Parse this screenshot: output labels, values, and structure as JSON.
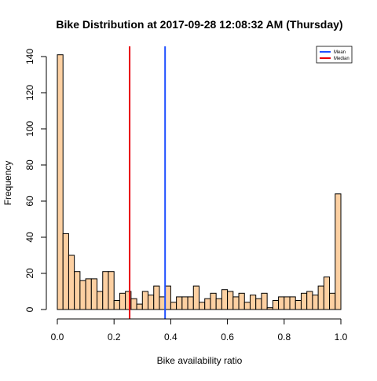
{
  "chart_data": {
    "type": "bar",
    "title": "Bike Distribution at  2017-09-28 12:08:32 AM  (Thursday)",
    "xlabel": "Bike availability ratio",
    "ylabel": "Frequency",
    "xlim": [
      0,
      1
    ],
    "ylim": [
      0,
      140
    ],
    "x_ticks": [
      0.0,
      0.2,
      0.4,
      0.6,
      0.8,
      1.0
    ],
    "x_tick_labels": [
      "0.0",
      "0.2",
      "0.4",
      "0.6",
      "0.8",
      "1.0"
    ],
    "y_ticks": [
      0,
      20,
      40,
      60,
      80,
      100,
      120,
      140
    ],
    "y_tick_labels": [
      "0",
      "20",
      "40",
      "60",
      "80",
      "100",
      "120",
      "140"
    ],
    "bin_width": 0.02,
    "bins_start": 0.0,
    "values": [
      141,
      42,
      30,
      21,
      16,
      17,
      17,
      10,
      21,
      21,
      5,
      9,
      10,
      6,
      3,
      10,
      8,
      13,
      7,
      13,
      4,
      7,
      7,
      7,
      13,
      4,
      6,
      9,
      6,
      11,
      10,
      7,
      9,
      4,
      8,
      6,
      9,
      1,
      5,
      7,
      7,
      7,
      5,
      9,
      10,
      8,
      13,
      18,
      9,
      64
    ],
    "bar_color": "#FDD0A2",
    "bar_edge_color": "#000000",
    "vlines": [
      {
        "name": "Mean",
        "x": 0.38,
        "color": "#1f4fff"
      },
      {
        "name": "Median",
        "x": 0.255,
        "color": "#e8000b"
      }
    ],
    "legend": {
      "placement": "top-right",
      "entries": [
        {
          "label": "Mean",
          "color": "#1f4fff"
        },
        {
          "label": "Median",
          "color": "#e8000b"
        }
      ]
    },
    "grid": false
  }
}
